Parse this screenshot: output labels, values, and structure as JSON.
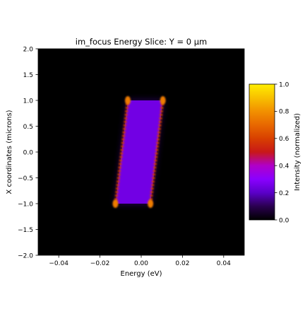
{
  "chart_data": {
    "type": "heatmap",
    "title": "im_focus Energy Slice: Y = 0 µm",
    "xlabel": "Energy (eV)",
    "ylabel": "X coordinates (microns)",
    "xlim": [
      -0.05,
      0.05
    ],
    "ylim": [
      -2.0,
      2.0
    ],
    "x_ticks": [
      -0.04,
      -0.02,
      0.0,
      0.02,
      0.04
    ],
    "x_tick_labels": [
      "−0.04",
      "−0.02",
      "0.00",
      "0.02",
      "0.04"
    ],
    "y_ticks": [
      2.0,
      1.5,
      1.0,
      0.5,
      0.0,
      -0.5,
      -1.0,
      -1.5,
      -2.0
    ],
    "y_tick_labels": [
      "2.0",
      "1.5",
      "1.0",
      "0.5",
      "0.0",
      "−0.5",
      "−1.0",
      "−1.5",
      "−2.0"
    ],
    "grid": false,
    "colormap": "gnuplot",
    "colorbar": {
      "label": "Intensity (normalized)",
      "range": [
        0.0,
        1.0
      ],
      "ticks": [
        0.0,
        0.2,
        0.4,
        0.6,
        0.8,
        1.0
      ],
      "tick_labels": [
        "0.0",
        "0.2",
        "0.4",
        "0.6",
        "0.8",
        "1.0"
      ]
    },
    "bright_region": {
      "shape": "parallelogram",
      "corners_energy_x": [
        [
          -0.0125,
          -1.0
        ],
        [
          0.0045,
          -1.0
        ],
        [
          0.0105,
          1.0
        ],
        [
          -0.0065,
          1.0
        ]
      ],
      "fill_intensity": 0.25,
      "edge_intensity": 0.6,
      "corner_intensity": 0.75
    },
    "background_intensity": 0.0
  }
}
